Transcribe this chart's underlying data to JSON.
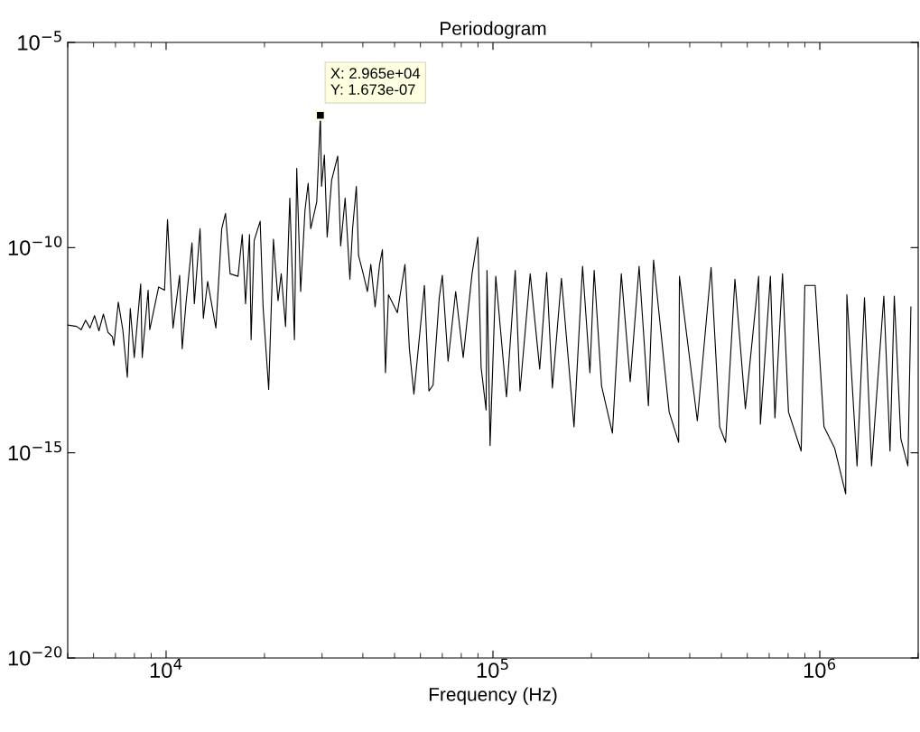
{
  "chart_data": {
    "type": "line",
    "title": "Periodogram",
    "xlabel": "Frequency (Hz)",
    "log": "xy",
    "grid": false,
    "marker": "none",
    "line_style": "solid",
    "xlim": [
      5000,
      2000000
    ],
    "xticks": [
      {
        "value": 10000,
        "label": "10$^{4}$"
      },
      {
        "value": 100000,
        "label": "10$^{5}$"
      },
      {
        "value": 1000000,
        "label": "10$^{6}$"
      }
    ],
    "ylim": [
      1e-20,
      1e-05
    ],
    "yticks": [
      {
        "value": 1e-20,
        "label": "10$^{−20}$"
      },
      {
        "value": 1e-15,
        "label": "10$^{−15}$"
      },
      {
        "value": 1e-10,
        "label": "10$^{−10}$"
      },
      {
        "value": 1e-05,
        "label": "10$^{−5}$"
      }
    ],
    "annotations": [
      "X: 2.965e+04\nY: 1.673e-07"
    ],
    "x": [
      5000,
      5320,
      5500,
      5670,
      5850,
      6040,
      6230,
      6430,
      6640,
      6850,
      6920,
      7140,
      7370,
      7610,
      7770,
      7990,
      8360,
      8450,
      8810,
      8910,
      9490,
      9890,
      10100,
      10500,
      11000,
      11200,
      11500,
      12000,
      12200,
      12700,
      13000,
      13400,
      14200,
      14800,
      15200,
      15700,
      16600,
      17100,
      17500,
      18000,
      18200,
      18600,
      19400,
      19800,
      20600,
      21300,
      22000,
      22500,
      23200,
      23900,
      24700,
      25100,
      25800,
      26600,
      27200,
      27700,
      28900,
      29650,
      29900,
      30500,
      31100,
      32100,
      33500,
      34200,
      35300,
      36500,
      37200,
      38200,
      38800,
      40100,
      41300,
      42300,
      43600,
      45000,
      45900,
      46900,
      47900,
      51000,
      53800,
      55500,
      57300,
      61700,
      63700,
      65600,
      68500,
      70000,
      72900,
      76900,
      81100,
      86300,
      89900,
      92000,
      95300,
      95900,
      98000,
      102000,
      110000,
      117000,
      121000,
      130000,
      139000,
      146000,
      152000,
      162000,
      177000,
      188000,
      198000,
      204000,
      215000,
      232000,
      247000,
      263000,
      280000,
      299000,
      310000,
      346000,
      370000,
      372000,
      409000,
      422000,
      465000,
      494000,
      515000,
      550000,
      592000,
      650000,
      658000,
      706000,
      729000,
      769000,
      802000,
      877000,
      900000,
      968000,
      1030000,
      1110000,
      1200000,
      1210000,
      1300000,
      1370000,
      1440000,
      1570000,
      1640000,
      1690000,
      1770000,
      1860000,
      1900000
    ],
    "series": [
      {
        "color": "#000000",
        "values": [
          1.3e-12,
          1.2e-12,
          1e-12,
          1.7e-12,
          1.1e-12,
          2.2e-12,
          9.4e-13,
          2.4e-12,
          8.7e-13,
          6.7e-13,
          4.1e-13,
          4.7e-12,
          1e-12,
          6.9e-14,
          3.3e-12,
          2.1e-13,
          1.3e-11,
          2.1e-13,
          9.2e-12,
          1e-12,
          1.1e-11,
          9.2e-12,
          4.8e-10,
          1.1e-12,
          2.1e-11,
          3.4e-13,
          4.3e-12,
          1.3e-10,
          4.3e-12,
          2.9e-10,
          1.9e-12,
          1.5e-11,
          1.1e-12,
          2.9e-10,
          6.8e-10,
          2.3e-11,
          2e-11,
          2.1e-10,
          4.3e-12,
          2.1e-10,
          5.7e-13,
          1.5e-10,
          4.4e-10,
          3.6e-12,
          3.5e-14,
          1.6e-10,
          5.1e-12,
          2.3e-11,
          1.2e-12,
          1.6e-09,
          5.7e-13,
          8.5e-09,
          8.5e-12,
          8e-10,
          3.7e-09,
          2.9e-10,
          1.3e-09,
          1.673e-07,
          3.1e-09,
          1.8e-08,
          1.8e-10,
          4.4e-09,
          1.7e-08,
          1.1e-10,
          1.6e-09,
          1.7e-11,
          2.9e-10,
          3.1e-09,
          6.4e-11,
          2.3e-11,
          8.5e-12,
          3.9e-11,
          3.6e-12,
          3.9e-11,
          8.9e-11,
          8.9e-14,
          7.1e-12,
          2.6e-12,
          3.9e-11,
          3.4e-13,
          2.7e-14,
          1.2e-11,
          3.2e-14,
          4.5e-14,
          6e-12,
          2.1e-11,
          1.7e-13,
          8.5e-12,
          2.1e-13,
          2.3e-11,
          1.8e-10,
          1.2e-13,
          1.1e-14,
          2.8e-11,
          1.5e-15,
          2e-11,
          2.3e-14,
          2.8e-11,
          3.2e-14,
          2.3e-11,
          1.1e-13,
          2.5e-11,
          3.8e-14,
          1.8e-11,
          4.3e-15,
          3.5e-11,
          8.9e-14,
          2.8e-11,
          4.2e-14,
          3e-15,
          2.3e-11,
          5.4e-14,
          3.5e-11,
          1.4e-14,
          5e-11,
          9.9e-15,
          1.8e-15,
          2e-11,
          4.5e-14,
          6e-15,
          3.3e-11,
          4.3e-15,
          1.8e-15,
          1.7e-11,
          1.2e-14,
          2e-11,
          5e-15,
          2e-11,
          7.1e-15,
          2.3e-11,
          9.9e-15,
          1.1e-15,
          1.2e-11,
          1.2e-11,
          4.3e-15,
          1.3e-15,
          1e-16,
          7.1e-12,
          4.8e-16,
          6e-12,
          4.8e-16,
          6.6e-12,
          1.1e-15,
          6.6e-12,
          2.2e-15,
          4.8e-16,
          3.6e-12
        ]
      }
    ]
  }
}
